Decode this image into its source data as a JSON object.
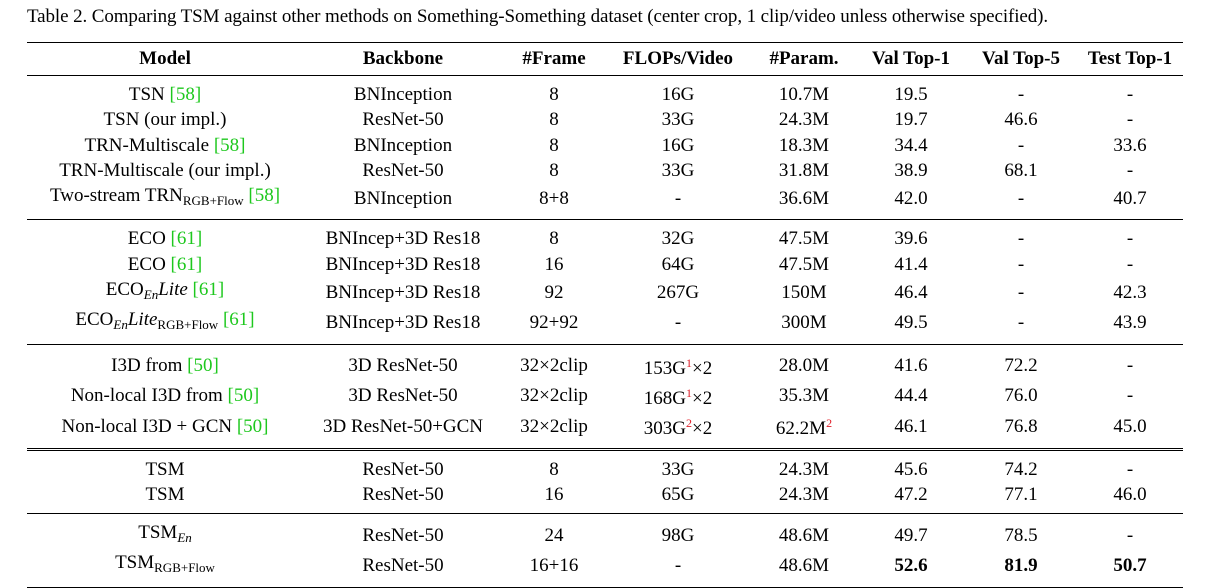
{
  "caption": "Table 2. Comparing TSM against other methods on Something-Something dataset (center crop, 1 clip/video unless otherwise specified).",
  "headers": [
    "Model",
    "Backbone",
    "#Frame",
    "FLOPs/Video",
    "#Param.",
    "Val Top-1",
    "Val Top-5",
    "Test Top-1"
  ],
  "groups": [
    [
      {
        "model": [
          [
            "t",
            "TSN "
          ],
          [
            "cite",
            "[58]"
          ]
        ],
        "cells": [
          "BNInception",
          "8",
          "16G",
          "10.7M",
          "19.5",
          "-",
          "-"
        ]
      },
      {
        "model": [
          [
            "t",
            "TSN (our impl.)"
          ]
        ],
        "cells": [
          "ResNet-50",
          "8",
          "33G",
          "24.3M",
          "19.7",
          "46.6",
          "-"
        ]
      },
      {
        "model": [
          [
            "t",
            "TRN-Multiscale "
          ],
          [
            "cite",
            "[58]"
          ]
        ],
        "cells": [
          "BNInception",
          "8",
          "16G",
          "18.3M",
          "34.4",
          "-",
          "33.6"
        ]
      },
      {
        "model": [
          [
            "t",
            "TRN-Multiscale (our impl.)"
          ]
        ],
        "cells": [
          "ResNet-50",
          "8",
          "33G",
          "31.8M",
          "38.9",
          "68.1",
          "-"
        ]
      },
      {
        "model": [
          [
            "t",
            "Two-stream TRN"
          ],
          [
            "sub",
            "RGB+Flow"
          ],
          [
            "t",
            " "
          ],
          [
            "cite",
            "[58]"
          ]
        ],
        "cells": [
          "BNInception",
          "8+8",
          "-",
          "36.6M",
          "42.0",
          "-",
          "40.7"
        ]
      }
    ],
    [
      {
        "model": [
          [
            "t",
            "ECO "
          ],
          [
            "cite",
            "[61]"
          ]
        ],
        "cells": [
          "BNIncep+3D Res18",
          "8",
          "32G",
          "47.5M",
          "39.6",
          "-",
          "-"
        ]
      },
      {
        "model": [
          [
            "t",
            "ECO "
          ],
          [
            "cite",
            "[61]"
          ]
        ],
        "cells": [
          "BNIncep+3D Res18",
          "16",
          "64G",
          "47.5M",
          "41.4",
          "-",
          "-"
        ]
      },
      {
        "model": [
          [
            "t",
            "ECO"
          ],
          [
            "subi",
            "En"
          ],
          [
            "it",
            "Lite"
          ],
          [
            "t",
            " "
          ],
          [
            "cite",
            "[61]"
          ]
        ],
        "cells": [
          "BNIncep+3D Res18",
          "92",
          "267G",
          "150M",
          "46.4",
          "-",
          "42.3"
        ]
      },
      {
        "model": [
          [
            "t",
            "ECO"
          ],
          [
            "subi",
            "En"
          ],
          [
            "it",
            "Lite"
          ],
          [
            "sub",
            "RGB+Flow"
          ],
          [
            "t",
            " "
          ],
          [
            "cite",
            "[61]"
          ]
        ],
        "cells": [
          "BNIncep+3D Res18",
          "92+92",
          "-",
          "300M",
          "49.5",
          "-",
          "43.9"
        ]
      }
    ],
    [
      {
        "model": [
          [
            "t",
            "I3D from "
          ],
          [
            "cite",
            "[50]"
          ]
        ],
        "cells": [
          "3D ResNet-50",
          "32×2clip",
          [
            [
              "t",
              "153G"
            ],
            [
              "sup",
              "1"
            ],
            [
              "t",
              "×2"
            ]
          ],
          "28.0M",
          "41.6",
          "72.2",
          "-"
        ]
      },
      {
        "model": [
          [
            "t",
            "Non-local I3D from "
          ],
          [
            "cite",
            "[50]"
          ]
        ],
        "cells": [
          "3D ResNet-50",
          "32×2clip",
          [
            [
              "t",
              "168G"
            ],
            [
              "sup",
              "1"
            ],
            [
              "t",
              "×2"
            ]
          ],
          "35.3M",
          "44.4",
          "76.0",
          "-"
        ]
      },
      {
        "model": [
          [
            "t",
            "Non-local I3D + GCN "
          ],
          [
            "cite",
            "[50]"
          ]
        ],
        "cells": [
          "3D ResNet-50+GCN",
          "32×2clip",
          [
            [
              "t",
              "303G"
            ],
            [
              "sup",
              "2"
            ],
            [
              "t",
              "×2"
            ]
          ],
          [
            [
              "t",
              "62.2M"
            ],
            [
              "sup",
              "2"
            ]
          ],
          "46.1",
          "76.8",
          "45.0"
        ]
      }
    ],
    [
      {
        "model": [
          [
            "t",
            "TSM"
          ]
        ],
        "cells": [
          "ResNet-50",
          "8",
          "33G",
          "24.3M",
          "45.6",
          "74.2",
          "-"
        ]
      },
      {
        "model": [
          [
            "t",
            "TSM"
          ]
        ],
        "cells": [
          "ResNet-50",
          "16",
          "65G",
          "24.3M",
          "47.2",
          "77.1",
          "46.0"
        ]
      }
    ],
    [
      {
        "model": [
          [
            "t",
            "TSM"
          ],
          [
            "subi",
            "En"
          ]
        ],
        "cells": [
          "ResNet-50",
          "24",
          "98G",
          "48.6M",
          "49.7",
          "78.5",
          "-"
        ]
      },
      {
        "model": [
          [
            "t",
            "TSM"
          ],
          [
            "sub",
            "RGB+Flow"
          ]
        ],
        "cells": [
          "ResNet-50",
          "16+16",
          "-",
          "48.6M",
          [
            [
              "b",
              "52.6"
            ]
          ],
          [
            [
              "b",
              "81.9"
            ]
          ],
          [
            [
              "b",
              "50.7"
            ]
          ]
        ]
      }
    ]
  ]
}
